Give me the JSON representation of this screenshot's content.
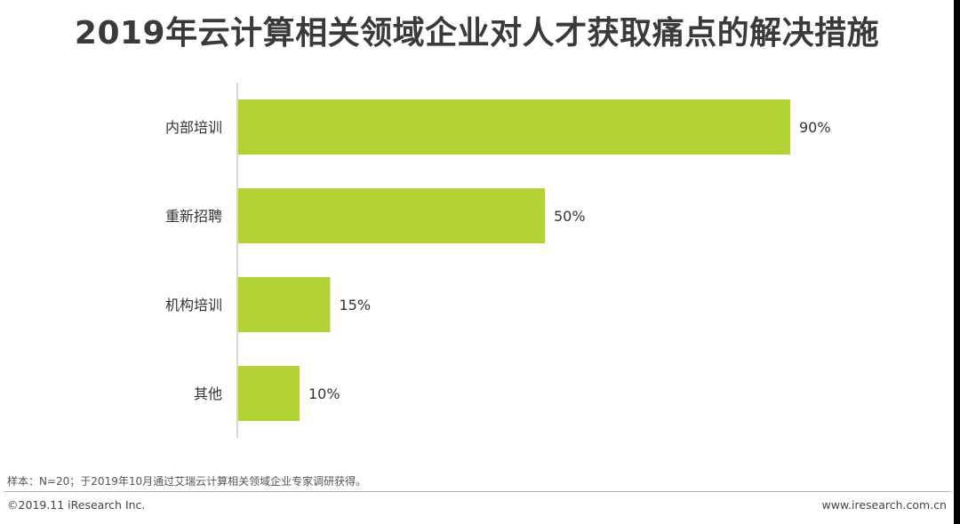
{
  "title": "2019年云计算相关领域企业对人才获取痛点的解决措施",
  "chart_data": {
    "type": "bar",
    "orientation": "horizontal",
    "categories": [
      "内部培训",
      "重新招聘",
      "机构培训",
      "其他"
    ],
    "values": [
      90,
      50,
      15,
      10
    ],
    "value_labels": [
      "90%",
      "50%",
      "15%",
      "10%"
    ],
    "unit": "%",
    "xlim": [
      0,
      100
    ],
    "grid": false,
    "legend": "none",
    "bar_color": "#b3d335"
  },
  "footnote": "样本：N=20；于2019年10月通过艾瑞云计算相关领域企业专家调研获得。",
  "copyright": "©2019.11 iResearch Inc.",
  "website": "www.iresearch.com.cn"
}
